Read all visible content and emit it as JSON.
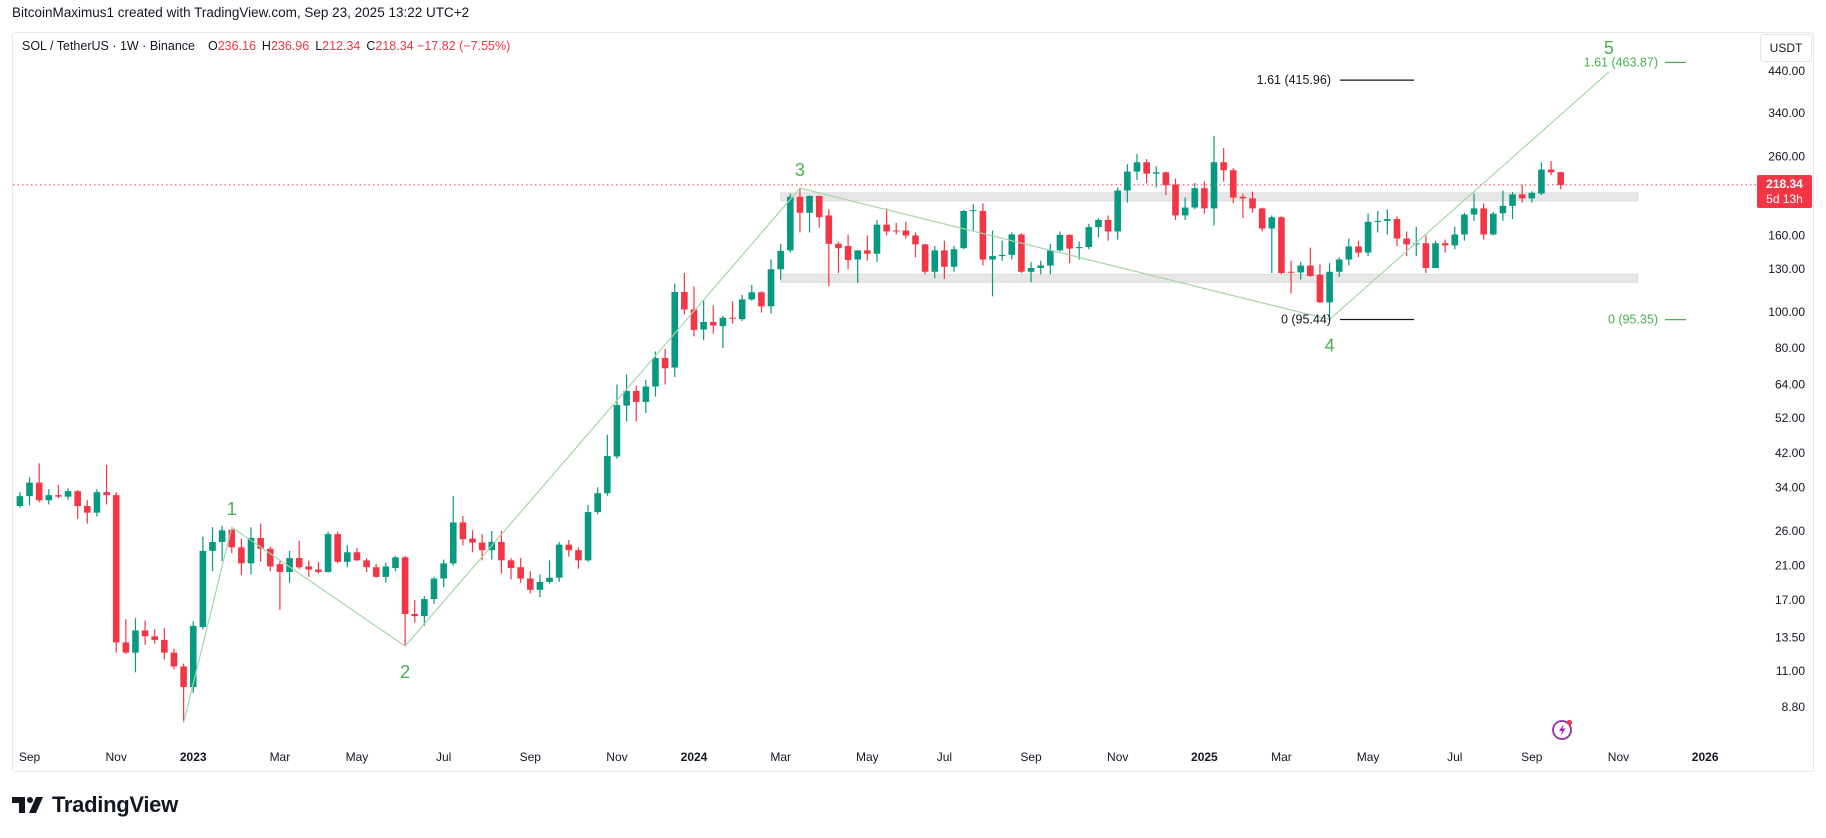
{
  "header": {
    "credit": "BitcoinMaximus1 created with TradingView.com, Sep 23, 2025 13:22 UTC+2"
  },
  "legend": {
    "symbol": "SOL / TetherUS · 1W · Binance",
    "o_label": "O",
    "o_value": "236.16",
    "h_label": "H",
    "h_value": "236.96",
    "l_label": "L",
    "l_value": "212.34",
    "c_label": "C",
    "c_value": "218.34",
    "change": "−17.82 (−7.55%)"
  },
  "currency_button": "USDT",
  "last_price": {
    "value": "218.34",
    "countdown": "5d 13h"
  },
  "footer": {
    "brand": "TradingView"
  },
  "colors": {
    "up": "#089981",
    "down": "#f23645",
    "wave": "#4caf50",
    "wave_line": "#a5d6a7",
    "zone": "#e3e3e3",
    "alert": "#9c27b0"
  },
  "icons": {
    "alert": "lightning-alert-icon",
    "logo": "tradingview-logo-icon"
  },
  "chart_data": {
    "type": "candlestick",
    "title": "SOL / TetherUS · 1W · Binance",
    "scale": "log",
    "ylim": [
      7.5,
      470
    ],
    "start": "2022-08-29",
    "interval_days": 7,
    "ohlc_fields": [
      "open",
      "high",
      "low",
      "close"
    ],
    "candles": [
      [
        30.3,
        33.0,
        30.0,
        32.2
      ],
      [
        32.2,
        36.2,
        30.4,
        35.0
      ],
      [
        35.0,
        39.4,
        31.0,
        31.4
      ],
      [
        31.4,
        33.6,
        30.6,
        32.4
      ],
      [
        32.4,
        34.5,
        31.8,
        32.1
      ],
      [
        32.1,
        33.8,
        31.5,
        33.2
      ],
      [
        33.2,
        33.4,
        28.0,
        30.3
      ],
      [
        30.3,
        31.4,
        27.2,
        29.1
      ],
      [
        29.1,
        33.6,
        28.4,
        33.0
      ],
      [
        33.0,
        39.0,
        30.6,
        32.4
      ],
      [
        32.4,
        33.0,
        12.3,
        13.1
      ],
      [
        13.1,
        15.1,
        12.2,
        12.3
      ],
      [
        12.3,
        15.2,
        10.9,
        14.1
      ],
      [
        14.1,
        15.0,
        12.9,
        13.6
      ],
      [
        13.6,
        14.2,
        13.0,
        13.3
      ],
      [
        13.3,
        14.3,
        11.8,
        12.3
      ],
      [
        12.3,
        12.6,
        11.1,
        11.3
      ],
      [
        11.3,
        11.5,
        8.0,
        9.95
      ],
      [
        9.95,
        14.9,
        9.6,
        14.5
      ],
      [
        14.4,
        25.1,
        14.2,
        23.0
      ],
      [
        23.0,
        26.6,
        20.3,
        24.3
      ],
      [
        24.3,
        26.8,
        21.6,
        26.1
      ],
      [
        26.2,
        26.6,
        22.7,
        23.5
      ],
      [
        23.5,
        24.8,
        19.8,
        21.3
      ],
      [
        21.3,
        26.6,
        19.9,
        24.9
      ],
      [
        24.9,
        27.2,
        21.5,
        23.3
      ],
      [
        23.3,
        23.6,
        20.3,
        20.9
      ],
      [
        21.2,
        21.6,
        16.0,
        20.2
      ],
      [
        20.2,
        23.0,
        18.9,
        22.0
      ],
      [
        22.0,
        24.5,
        20.6,
        20.8
      ],
      [
        20.9,
        21.7,
        19.6,
        20.5
      ],
      [
        20.5,
        21.5,
        20.0,
        20.2
      ],
      [
        20.2,
        25.9,
        20.1,
        25.5
      ],
      [
        25.5,
        25.9,
        21.3,
        21.5
      ],
      [
        21.5,
        23.8,
        20.8,
        22.8
      ],
      [
        22.8,
        23.4,
        21.6,
        21.7
      ],
      [
        21.7,
        22.0,
        20.2,
        20.8
      ],
      [
        20.8,
        21.2,
        19.5,
        19.6
      ],
      [
        19.6,
        21.4,
        18.9,
        20.9
      ],
      [
        20.7,
        22.3,
        20.3,
        22.1
      ],
      [
        22.1,
        22.3,
        12.8,
        15.6
      ],
      [
        15.6,
        17.0,
        14.8,
        15.4
      ],
      [
        15.4,
        17.4,
        14.5,
        17.1
      ],
      [
        17.1,
        19.6,
        16.6,
        19.4
      ],
      [
        19.4,
        21.8,
        18.4,
        21.3
      ],
      [
        21.3,
        32.2,
        21.0,
        27.4
      ],
      [
        27.4,
        28.5,
        23.8,
        24.7
      ],
      [
        24.8,
        26.1,
        22.8,
        24.2
      ],
      [
        24.2,
        25.5,
        21.7,
        23.1
      ],
      [
        23.1,
        26.0,
        21.8,
        24.3
      ],
      [
        24.3,
        26.0,
        20.0,
        21.7
      ],
      [
        21.7,
        22.0,
        19.3,
        20.7
      ],
      [
        20.8,
        22.0,
        18.9,
        19.4
      ],
      [
        19.4,
        20.3,
        17.7,
        18.1
      ],
      [
        18.1,
        19.9,
        17.3,
        19.0
      ],
      [
        19.0,
        21.7,
        18.8,
        19.5
      ],
      [
        19.5,
        24.3,
        19.0,
        23.9
      ],
      [
        23.9,
        24.6,
        22.2,
        23.1
      ],
      [
        23.1,
        23.5,
        20.6,
        21.7
      ],
      [
        21.7,
        30.5,
        21.5,
        29.2
      ],
      [
        29.2,
        34.0,
        28.8,
        32.8
      ],
      [
        32.8,
        47.0,
        32.3,
        41.2
      ],
      [
        41.1,
        64.0,
        40.5,
        56.4
      ],
      [
        56.2,
        68.0,
        51.0,
        61.5
      ],
      [
        61.5,
        63.5,
        51.0,
        57.5
      ],
      [
        57.5,
        65.8,
        53.7,
        63.2
      ],
      [
        63.2,
        78.4,
        59.4,
        75.3
      ],
      [
        75.3,
        79.6,
        64.0,
        70.7
      ],
      [
        71.0,
        119.0,
        67.0,
        113.0
      ],
      [
        113.0,
        127.0,
        98.5,
        101.5
      ],
      [
        101.5,
        117.0,
        86.0,
        89.5
      ],
      [
        89.7,
        107.7,
        84.0,
        94.0
      ],
      [
        94.0,
        104.0,
        87.5,
        92.0
      ],
      [
        91.6,
        97.5,
        80.0,
        96.5
      ],
      [
        96.5,
        106.8,
        93.0,
        96.0
      ],
      [
        95.6,
        111.0,
        94.5,
        108.0
      ],
      [
        108.0,
        118.0,
        107.0,
        112.8
      ],
      [
        112.8,
        113.5,
        99.6,
        103.5
      ],
      [
        103.5,
        138.0,
        99.0,
        130.0
      ],
      [
        130.0,
        152.0,
        122.0,
        145.6
      ],
      [
        146.0,
        207.0,
        144.0,
        203.0
      ],
      [
        203.0,
        214.0,
        163.0,
        184.0
      ],
      [
        184.0,
        205.0,
        163.0,
        204.0
      ],
      [
        204.0,
        204.5,
        168.0,
        179.0
      ],
      [
        181.0,
        188.0,
        117.0,
        152.0
      ],
      [
        152.0,
        154.0,
        127.0,
        148.0
      ],
      [
        150.0,
        161.0,
        130.0,
        137.6
      ],
      [
        138.0,
        146.0,
        119.5,
        146.0
      ],
      [
        146.0,
        160.0,
        137.0,
        143.0
      ],
      [
        143.0,
        176.0,
        136.0,
        171.0
      ],
      [
        171.0,
        189.0,
        160.0,
        164.0
      ],
      [
        165.0,
        173.0,
        161.0,
        164.5
      ],
      [
        165.0,
        174.0,
        157.0,
        160.0
      ],
      [
        160.0,
        163.0,
        140.0,
        151.5
      ],
      [
        151.5,
        152.0,
        126.0,
        128.0
      ],
      [
        128.0,
        150.0,
        123.0,
        146.0
      ],
      [
        146.0,
        155.0,
        122.5,
        132.0
      ],
      [
        132.0,
        150.0,
        128.0,
        147.0
      ],
      [
        148.0,
        187.0,
        147.0,
        186.0
      ],
      [
        186.0,
        194.0,
        165.0,
        187.0
      ],
      [
        186.0,
        195.0,
        133.0,
        138.0
      ],
      [
        138.0,
        165.0,
        110.0,
        141.0
      ],
      [
        141.0,
        155.0,
        137.0,
        142.0
      ],
      [
        142.0,
        163.0,
        138.0,
        161.0
      ],
      [
        161.0,
        162.0,
        127.0,
        128.0
      ],
      [
        128.0,
        136.0,
        120.0,
        131.0
      ],
      [
        131.0,
        137.0,
        126.0,
        133.0
      ],
      [
        133.0,
        152.0,
        126.0,
        146.0
      ],
      [
        146.0,
        164.0,
        145.0,
        160.6
      ],
      [
        160.6,
        161.0,
        135.0,
        147.6
      ],
      [
        148.0,
        154.0,
        138.0,
        149.0
      ],
      [
        149.0,
        172.0,
        147.0,
        168.5
      ],
      [
        168.5,
        178.0,
        158.0,
        176.0
      ],
      [
        176.0,
        181.0,
        155.0,
        164.0
      ],
      [
        164.0,
        215.0,
        156.0,
        211.0
      ],
      [
        211.0,
        248.0,
        196.0,
        237.0
      ],
      [
        237.0,
        264.0,
        225.0,
        251.0
      ],
      [
        251.0,
        256.0,
        221.0,
        234.0
      ],
      [
        234.0,
        245.0,
        215.0,
        236.0
      ],
      [
        236.0,
        237.0,
        205.0,
        218.0
      ],
      [
        219.0,
        227.0,
        176.0,
        181.0
      ],
      [
        181.0,
        202.0,
        176.0,
        190.0
      ],
      [
        190.0,
        221.0,
        188.0,
        214.0
      ],
      [
        214.0,
        223.0,
        183.0,
        189.0
      ],
      [
        189.0,
        295.0,
        170.0,
        251.0
      ],
      [
        251.0,
        274.0,
        223.0,
        239.0
      ],
      [
        239.0,
        242.0,
        195.0,
        202.0
      ],
      [
        203.0,
        207.0,
        178.0,
        201.0
      ],
      [
        201.0,
        209.6,
        184.0,
        189.0
      ],
      [
        189.0,
        190.0,
        164.0,
        167.0
      ],
      [
        167.0,
        181.0,
        127.0,
        179.0
      ],
      [
        179.0,
        180.0,
        126.0,
        127.0
      ],
      [
        128.0,
        137.0,
        112.0,
        127.5
      ],
      [
        127.5,
        136.0,
        122.0,
        133.0
      ],
      [
        133.0,
        148.5,
        124.0,
        124.7
      ],
      [
        125.6,
        134.0,
        105.5,
        106.0
      ],
      [
        106.0,
        135.0,
        95.4,
        128.0
      ],
      [
        128.0,
        140.0,
        124.0,
        138.0
      ],
      [
        138.0,
        157.0,
        133.0,
        149.6
      ],
      [
        149.6,
        155.0,
        140.0,
        144.0
      ],
      [
        144.0,
        183.0,
        141.0,
        174.0
      ],
      [
        174.0,
        186.0,
        163.0,
        175.0
      ],
      [
        175.0,
        188.0,
        161.0,
        177.0
      ],
      [
        177.0,
        180.0,
        150.0,
        157.0
      ],
      [
        157.0,
        164.0,
        141.0,
        151.5
      ],
      [
        151.5,
        169.0,
        141.0,
        152.5
      ],
      [
        152.5,
        160.0,
        127.0,
        131.0
      ],
      [
        131.0,
        155.0,
        131.0,
        152.5
      ],
      [
        152.5,
        156.0,
        144.0,
        150.5
      ],
      [
        150.5,
        169.0,
        147.0,
        161.0
      ],
      [
        161.0,
        184.0,
        155.0,
        182.0
      ],
      [
        182.0,
        207.0,
        175.0,
        189.0
      ],
      [
        189.0,
        195.0,
        156.0,
        161.0
      ],
      [
        161.0,
        185.0,
        160.0,
        183.0
      ],
      [
        183.5,
        211.0,
        175.0,
        192.0
      ],
      [
        192.0,
        209.0,
        177.0,
        206.0
      ],
      [
        206.0,
        218.9,
        196.0,
        201.0
      ],
      [
        201.0,
        210.0,
        196.0,
        208.0
      ],
      [
        207.0,
        251.0,
        205.0,
        240.0
      ],
      [
        240.0,
        253.0,
        232.0,
        236.0
      ],
      [
        236.16,
        236.96,
        212.34,
        218.34
      ]
    ],
    "last_price": 218.34,
    "price_ticks": [
      "440.00",
      "340.00",
      "260.00",
      "160.00",
      "130.00",
      "100.00",
      "80.00",
      "64.00",
      "52.00",
      "42.00",
      "34.00",
      "26.00",
      "21.00",
      "17.00",
      "13.50",
      "11.00",
      "8.80"
    ],
    "time_ticks": [
      {
        "label": "Sep",
        "date": "2022-09-05",
        "year": false
      },
      {
        "label": "Nov",
        "date": "2022-11-07",
        "year": false
      },
      {
        "label": "2023",
        "date": "2023-01-02",
        "year": true
      },
      {
        "label": "Mar",
        "date": "2023-03-06",
        "year": false
      },
      {
        "label": "May",
        "date": "2023-05-01",
        "year": false
      },
      {
        "label": "Jul",
        "date": "2023-07-03",
        "year": false
      },
      {
        "label": "Sep",
        "date": "2023-09-04",
        "year": false
      },
      {
        "label": "Nov",
        "date": "2023-11-06",
        "year": false
      },
      {
        "label": "2024",
        "date": "2024-01-01",
        "year": true
      },
      {
        "label": "Mar",
        "date": "2024-03-04",
        "year": false
      },
      {
        "label": "May",
        "date": "2024-05-06",
        "year": false
      },
      {
        "label": "Jul",
        "date": "2024-07-01",
        "year": false
      },
      {
        "label": "Sep",
        "date": "2024-09-02",
        "year": false
      },
      {
        "label": "Nov",
        "date": "2024-11-04",
        "year": false
      },
      {
        "label": "2025",
        "date": "2025-01-06",
        "year": true
      },
      {
        "label": "Mar",
        "date": "2025-03-03",
        "year": false
      },
      {
        "label": "May",
        "date": "2025-05-05",
        "year": false
      },
      {
        "label": "Jul",
        "date": "2025-07-07",
        "year": false
      },
      {
        "label": "Sep",
        "date": "2025-09-01",
        "year": false
      },
      {
        "label": "Nov",
        "date": "2025-11-03",
        "year": false
      },
      {
        "label": "2026",
        "date": "2026-01-05",
        "year": true
      }
    ],
    "wave_points": [
      {
        "label": "",
        "date": "2022-12-26",
        "price": 8.0,
        "pos": "below"
      },
      {
        "label": "1",
        "date": "2023-01-30",
        "price": 26.6,
        "pos": "above"
      },
      {
        "label": "2",
        "date": "2023-06-05",
        "price": 12.8,
        "pos": "below"
      },
      {
        "label": "3",
        "date": "2024-03-18",
        "price": 214,
        "pos": "above"
      },
      {
        "label": "4",
        "date": "2025-04-07",
        "price": 95.44,
        "pos": "below"
      },
      {
        "label": "5",
        "date": "2025-10-27",
        "price": 437,
        "pos": "above"
      }
    ],
    "zones": [
      {
        "from": "2024-03-04",
        "to": "2025-11-17",
        "low": 198,
        "high": 208
      },
      {
        "from": "2024-03-04",
        "to": "2025-11-17",
        "low": 120,
        "high": 126
      }
    ],
    "fib_levels": [
      {
        "text": "1.61 (415.96)",
        "price": 415.96,
        "style": "black"
      },
      {
        "text": "0 (95.44)",
        "price": 95.44,
        "style": "black"
      },
      {
        "text": "1.61 (463.87)",
        "price": 463.87,
        "style": "green"
      },
      {
        "text": "0 (95.35)",
        "price": 95.35,
        "style": "green"
      }
    ]
  }
}
